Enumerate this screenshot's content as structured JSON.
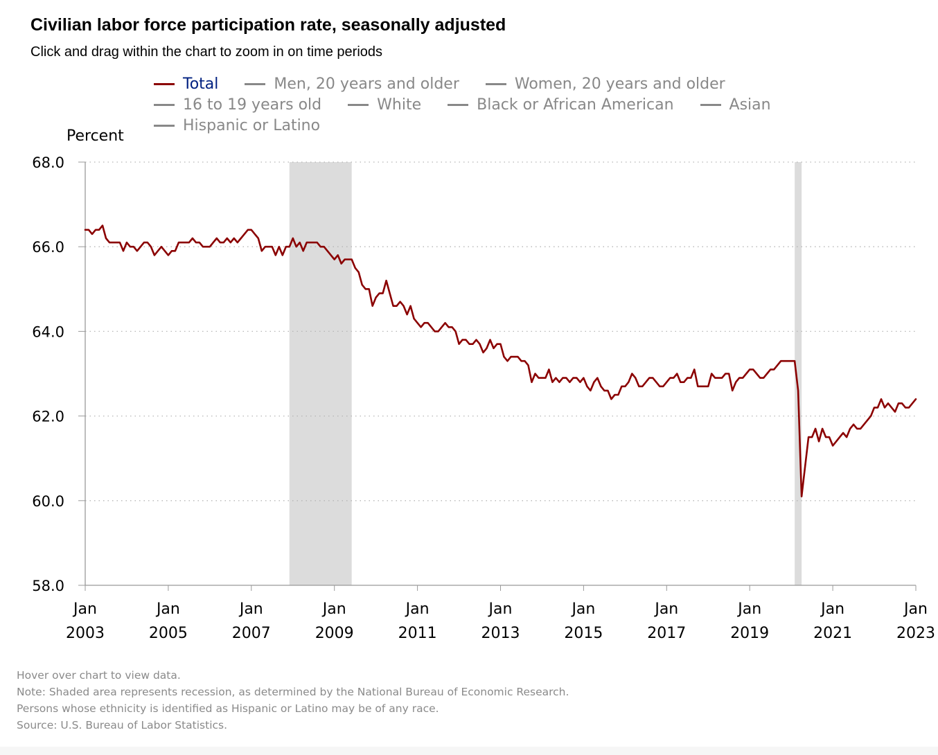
{
  "header": {
    "title": "Civilian labor force participation rate, seasonally adjusted",
    "subtitle": "Click and drag within the chart to zoom in on time periods"
  },
  "legend": {
    "rows": [
      [
        {
          "label": "Total",
          "color": "#8b0000",
          "active": true
        },
        {
          "label": "Men, 20 years and older",
          "color": "#888888",
          "active": false
        },
        {
          "label": "Women, 20 years and older",
          "color": "#888888",
          "active": false
        }
      ],
      [
        {
          "label": "16 to 19 years old",
          "color": "#888888",
          "active": false
        },
        {
          "label": "White",
          "color": "#888888",
          "active": false
        },
        {
          "label": "Black or African American",
          "color": "#888888",
          "active": false
        },
        {
          "label": "Asian",
          "color": "#888888",
          "active": false
        }
      ],
      [
        {
          "label": "Hispanic or Latino",
          "color": "#888888",
          "active": false
        }
      ]
    ]
  },
  "notes": {
    "hover": "Hover over chart to view data.",
    "recession": "Note: Shaded area represents recession, as determined by the National Bureau of Economic Research.",
    "ethnicity": "Persons whose ethnicity is identified as Hispanic or Latino may be of any race.",
    "source": "Source: U.S. Bureau of Labor Statistics."
  },
  "chart_data": {
    "type": "line",
    "title": "Civilian labor force participation rate, seasonally adjusted",
    "ylabel": "Percent",
    "xlabel": "",
    "ylim": [
      58.0,
      68.0
    ],
    "yticks": [
      "58.0",
      "60.0",
      "62.0",
      "64.0",
      "66.0",
      "68.0"
    ],
    "xlim": [
      "2003-01",
      "2023-01"
    ],
    "xticks": [
      {
        "month": "Jan",
        "year": "2003",
        "date": "2003-01"
      },
      {
        "month": "Jan",
        "year": "2005",
        "date": "2005-01"
      },
      {
        "month": "Jan",
        "year": "2007",
        "date": "2007-01"
      },
      {
        "month": "Jan",
        "year": "2009",
        "date": "2009-01"
      },
      {
        "month": "Jan",
        "year": "2011",
        "date": "2011-01"
      },
      {
        "month": "Jan",
        "year": "2013",
        "date": "2013-01"
      },
      {
        "month": "Jan",
        "year": "2015",
        "date": "2015-01"
      },
      {
        "month": "Jan",
        "year": "2017",
        "date": "2017-01"
      },
      {
        "month": "Jan",
        "year": "2019",
        "date": "2019-01"
      },
      {
        "month": "Jan",
        "year": "2021",
        "date": "2021-01"
      },
      {
        "month": "Jan",
        "year": "2023",
        "date": "2023-01"
      }
    ],
    "grid": true,
    "recessions": [
      {
        "start": "2007-12",
        "end": "2009-06"
      },
      {
        "start": "2020-02",
        "end": "2020-04"
      }
    ],
    "series": [
      {
        "name": "Total",
        "color": "#8b0000",
        "start": "2003-01",
        "frequency": "monthly",
        "values": [
          66.4,
          66.4,
          66.3,
          66.4,
          66.4,
          66.5,
          66.2,
          66.1,
          66.1,
          66.1,
          66.1,
          65.9,
          66.1,
          66.0,
          66.0,
          65.9,
          66.0,
          66.1,
          66.1,
          66.0,
          65.8,
          65.9,
          66.0,
          65.9,
          65.8,
          65.9,
          65.9,
          66.1,
          66.1,
          66.1,
          66.1,
          66.2,
          66.1,
          66.1,
          66.0,
          66.0,
          66.0,
          66.1,
          66.2,
          66.1,
          66.1,
          66.2,
          66.1,
          66.2,
          66.1,
          66.2,
          66.3,
          66.4,
          66.4,
          66.3,
          66.2,
          65.9,
          66.0,
          66.0,
          66.0,
          65.8,
          66.0,
          65.8,
          66.0,
          66.0,
          66.2,
          66.0,
          66.1,
          65.9,
          66.1,
          66.1,
          66.1,
          66.1,
          66.0,
          66.0,
          65.9,
          65.8,
          65.7,
          65.8,
          65.6,
          65.7,
          65.7,
          65.7,
          65.5,
          65.4,
          65.1,
          65.0,
          65.0,
          64.6,
          64.8,
          64.9,
          64.9,
          65.2,
          64.9,
          64.6,
          64.6,
          64.7,
          64.6,
          64.4,
          64.6,
          64.3,
          64.2,
          64.1,
          64.2,
          64.2,
          64.1,
          64.0,
          64.0,
          64.1,
          64.2,
          64.1,
          64.1,
          64.0,
          63.7,
          63.8,
          63.8,
          63.7,
          63.7,
          63.8,
          63.7,
          63.5,
          63.6,
          63.8,
          63.6,
          63.7,
          63.7,
          63.4,
          63.3,
          63.4,
          63.4,
          63.4,
          63.3,
          63.3,
          63.2,
          62.8,
          63.0,
          62.9,
          62.9,
          62.9,
          63.1,
          62.8,
          62.9,
          62.8,
          62.9,
          62.9,
          62.8,
          62.9,
          62.9,
          62.8,
          62.9,
          62.7,
          62.6,
          62.8,
          62.9,
          62.7,
          62.6,
          62.6,
          62.4,
          62.5,
          62.5,
          62.7,
          62.7,
          62.8,
          63.0,
          62.9,
          62.7,
          62.7,
          62.8,
          62.9,
          62.9,
          62.8,
          62.7,
          62.7,
          62.8,
          62.9,
          62.9,
          63.0,
          62.8,
          62.8,
          62.9,
          62.9,
          63.1,
          62.7,
          62.7,
          62.7,
          62.7,
          63.0,
          62.9,
          62.9,
          62.9,
          63.0,
          63.0,
          62.6,
          62.8,
          62.9,
          62.9,
          63.0,
          63.1,
          63.1,
          63.0,
          62.9,
          62.9,
          63.0,
          63.1,
          63.1,
          63.2,
          63.3,
          63.3,
          63.3,
          63.3,
          63.3,
          62.6,
          60.1,
          60.8,
          61.5,
          61.5,
          61.7,
          61.4,
          61.7,
          61.5,
          61.5,
          61.3,
          61.4,
          61.5,
          61.6,
          61.5,
          61.7,
          61.8,
          61.7,
          61.7,
          61.8,
          61.9,
          62.0,
          62.2,
          62.2,
          62.4,
          62.2,
          62.3,
          62.2,
          62.1,
          62.3,
          62.3,
          62.2,
          62.2,
          62.3,
          62.4
        ]
      }
    ]
  }
}
